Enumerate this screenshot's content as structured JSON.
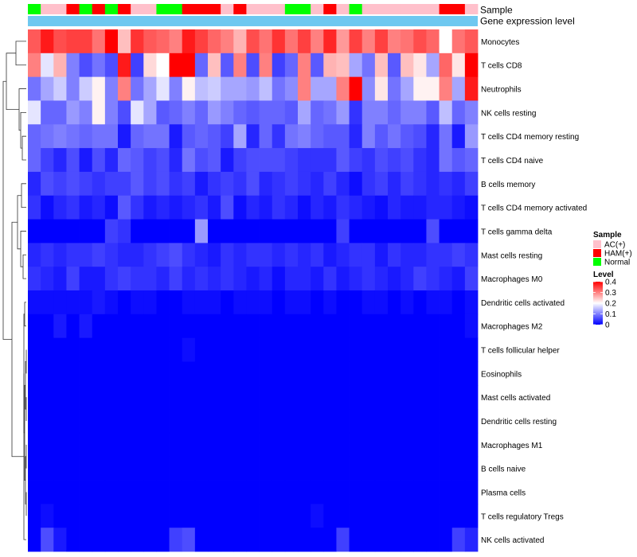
{
  "chart_data": {
    "type": "heatmap",
    "title": "",
    "annotation_labels": [
      "Sample",
      "Gene expression level"
    ],
    "rows": [
      "Monocytes",
      "T cells CD8",
      "Neutrophils",
      "NK cells resting",
      "T cells CD4 memory resting",
      "T cells CD4 naive",
      "B cells memory",
      "T cells CD4 memory activated",
      "T cells gamma delta",
      "Mast cells resting",
      "Macrophages M0",
      "Dendritic cells activated",
      "Macrophages M2",
      "T cells follicular helper",
      "Eosinophils",
      "Mast cells activated",
      "Dendritic cells resting",
      "Macrophages M1",
      "B cells naive",
      "Plasma cells",
      "T cells regulatory  Tregs",
      "NK cells activated"
    ],
    "sample_groups": [
      "Normal",
      "AC(+)",
      "AC(+)",
      "HAM(+)",
      "Normal",
      "HAM(+)",
      "Normal",
      "HAM(+)",
      "AC(+)",
      "AC(+)",
      "Normal",
      "Normal",
      "HAM(+)",
      "HAM(+)",
      "HAM(+)",
      "AC(+)",
      "HAM(+)",
      "AC(+)",
      "AC(+)",
      "AC(+)",
      "Normal",
      "Normal",
      "AC(+)",
      "HAM(+)",
      "AC(+)",
      "Normal",
      "AC(+)",
      "AC(+)",
      "AC(+)",
      "AC(+)",
      "AC(+)",
      "AC(+)",
      "HAM(+)",
      "HAM(+)",
      "AC(+)"
    ],
    "values": [
      [
        0.33,
        0.38,
        0.34,
        0.35,
        0.35,
        0.31,
        0.4,
        0.25,
        0.36,
        0.33,
        0.32,
        0.3,
        0.38,
        0.35,
        0.32,
        0.3,
        0.26,
        0.34,
        0.31,
        0.36,
        0.31,
        0.35,
        0.3,
        0.37,
        0.28,
        0.35,
        0.3,
        0.35,
        0.3,
        0.31,
        0.34,
        0.32,
        0.2,
        0.31,
        0.33
      ],
      [
        0.3,
        0.18,
        0.26,
        0.1,
        0.06,
        0.09,
        0.06,
        0.38,
        0.05,
        0.23,
        0.2,
        0.42,
        0.42,
        0.08,
        0.25,
        0.07,
        0.3,
        0.06,
        0.3,
        0.05,
        0.08,
        0.3,
        0.07,
        0.26,
        0.25,
        0.13,
        0.09,
        0.25,
        0.07,
        0.25,
        0.22,
        0.13,
        0.32,
        0.22,
        0.42
      ],
      [
        0.09,
        0.13,
        0.16,
        0.1,
        0.16,
        0.21,
        0.1,
        0.3,
        0.09,
        0.13,
        0.18,
        0.1,
        0.21,
        0.15,
        0.16,
        0.13,
        0.13,
        0.12,
        0.15,
        0.09,
        0.11,
        0.3,
        0.13,
        0.13,
        0.3,
        0.42,
        0.11,
        0.22,
        0.09,
        0.13,
        0.21,
        0.21,
        0.3,
        0.13,
        0.38
      ],
      [
        0.18,
        0.08,
        0.08,
        0.12,
        0.1,
        0.21,
        0.1,
        0.06,
        0.18,
        0.13,
        0.07,
        0.08,
        0.1,
        0.08,
        0.12,
        0.1,
        0.08,
        0.07,
        0.08,
        0.08,
        0.07,
        0.13,
        0.08,
        0.09,
        0.12,
        0.04,
        0.1,
        0.1,
        0.08,
        0.1,
        0.1,
        0.07,
        0.15,
        0.08,
        0.1
      ],
      [
        0.08,
        0.09,
        0.1,
        0.09,
        0.08,
        0.09,
        0.09,
        0.02,
        0.08,
        0.09,
        0.09,
        0.02,
        0.07,
        0.08,
        0.07,
        0.05,
        0.13,
        0.03,
        0.08,
        0.04,
        0.09,
        0.1,
        0.08,
        0.07,
        0.07,
        0.03,
        0.1,
        0.07,
        0.09,
        0.07,
        0.06,
        0.03,
        0.09,
        0.02,
        0.12
      ],
      [
        0.08,
        0.05,
        0.03,
        0.06,
        0.02,
        0.06,
        0.03,
        0.08,
        0.07,
        0.05,
        0.06,
        0.03,
        0.09,
        0.06,
        0.07,
        0.02,
        0.05,
        0.06,
        0.06,
        0.06,
        0.05,
        0.04,
        0.04,
        0.04,
        0.07,
        0.05,
        0.04,
        0.06,
        0.05,
        0.06,
        0.04,
        0.03,
        0.09,
        0.07,
        0.08
      ],
      [
        0.03,
        0.06,
        0.05,
        0.06,
        0.05,
        0.04,
        0.05,
        0.05,
        0.07,
        0.05,
        0.06,
        0.04,
        0.05,
        0.02,
        0.04,
        0.05,
        0.04,
        0.06,
        0.03,
        0.04,
        0.05,
        0.04,
        0.03,
        0.05,
        0.03,
        0.01,
        0.04,
        0.05,
        0.03,
        0.05,
        0.04,
        0.03,
        0.04,
        0.03,
        0.05
      ],
      [
        0.04,
        0.01,
        0.03,
        0.04,
        0.02,
        0.03,
        0.01,
        0.07,
        0.04,
        0.02,
        0.03,
        0.02,
        0.03,
        0.04,
        0.02,
        0.06,
        0.01,
        0.03,
        0.02,
        0.04,
        0.03,
        0.01,
        0.03,
        0.02,
        0.04,
        0.03,
        0.02,
        0.01,
        0.03,
        0.02,
        0.02,
        0.03,
        0.03,
        0.02,
        0.01
      ],
      [
        0.0,
        0.0,
        0.0,
        0.0,
        0.0,
        0.0,
        0.05,
        0.04,
        0.0,
        0.0,
        0.0,
        0.0,
        0.0,
        0.12,
        0.0,
        0.0,
        0.0,
        0.0,
        0.0,
        0.0,
        0.0,
        0.0,
        0.0,
        0.0,
        0.05,
        0.0,
        0.0,
        0.0,
        0.0,
        0.0,
        0.0,
        0.06,
        0.0,
        0.0,
        0.0
      ],
      [
        0.03,
        0.04,
        0.03,
        0.04,
        0.04,
        0.05,
        0.04,
        0.03,
        0.03,
        0.04,
        0.05,
        0.06,
        0.04,
        0.03,
        0.02,
        0.04,
        0.03,
        0.04,
        0.04,
        0.03,
        0.04,
        0.03,
        0.04,
        0.02,
        0.03,
        0.04,
        0.04,
        0.02,
        0.04,
        0.03,
        0.03,
        0.04,
        0.04,
        0.05,
        0.04
      ],
      [
        0.04,
        0.03,
        0.02,
        0.05,
        0.02,
        0.02,
        0.04,
        0.05,
        0.04,
        0.04,
        0.03,
        0.05,
        0.03,
        0.04,
        0.03,
        0.04,
        0.03,
        0.02,
        0.03,
        0.01,
        0.03,
        0.03,
        0.02,
        0.04,
        0.02,
        0.03,
        0.04,
        0.03,
        0.02,
        0.03,
        0.05,
        0.04,
        0.03,
        0.02,
        0.05
      ],
      [
        0.01,
        0.01,
        0.01,
        0.01,
        0.01,
        0.02,
        0.01,
        0.0,
        0.01,
        0.01,
        0.0,
        0.0,
        0.01,
        0.01,
        0.01,
        0.0,
        0.01,
        0.01,
        0.01,
        0.0,
        0.01,
        0.01,
        0.0,
        0.01,
        0.0,
        0.0,
        0.01,
        0.01,
        0.0,
        0.01,
        0.0,
        0.01,
        0.01,
        0.0,
        0.01
      ],
      [
        0.0,
        0.0,
        0.02,
        0.0,
        0.02,
        0.0,
        0.0,
        0.0,
        0.0,
        0.0,
        0.0,
        0.0,
        0.0,
        0.0,
        0.0,
        0.0,
        0.0,
        0.0,
        0.0,
        0.0,
        0.0,
        0.0,
        0.0,
        0.0,
        0.0,
        0.0,
        0.0,
        0.0,
        0.0,
        0.0,
        0.0,
        0.0,
        0.0,
        0.0,
        0.01
      ],
      [
        0.0,
        0.0,
        0.0,
        0.0,
        0.0,
        0.0,
        0.0,
        0.0,
        0.0,
        0.0,
        0.0,
        0.0,
        0.01,
        0.0,
        0.0,
        0.0,
        0.0,
        0.0,
        0.0,
        0.0,
        0.0,
        0.0,
        0.0,
        0.0,
        0.0,
        0.0,
        0.0,
        0.0,
        0.0,
        0.0,
        0.0,
        0.0,
        0.0,
        0.0,
        0.0
      ],
      [
        0.0,
        0.0,
        0.0,
        0.0,
        0.0,
        0.0,
        0.0,
        0.0,
        0.0,
        0.0,
        0.0,
        0.0,
        0.0,
        0.0,
        0.0,
        0.0,
        0.0,
        0.0,
        0.0,
        0.0,
        0.0,
        0.0,
        0.0,
        0.0,
        0.0,
        0.0,
        0.0,
        0.0,
        0.0,
        0.0,
        0.0,
        0.0,
        0.0,
        0.0,
        0.0
      ],
      [
        0.0,
        0.0,
        0.0,
        0.0,
        0.0,
        0.0,
        0.0,
        0.0,
        0.0,
        0.0,
        0.0,
        0.0,
        0.0,
        0.0,
        0.0,
        0.0,
        0.0,
        0.0,
        0.0,
        0.0,
        0.0,
        0.0,
        0.0,
        0.0,
        0.0,
        0.0,
        0.0,
        0.0,
        0.0,
        0.0,
        0.0,
        0.0,
        0.0,
        0.0,
        0.0
      ],
      [
        0.0,
        0.0,
        0.0,
        0.0,
        0.0,
        0.0,
        0.0,
        0.0,
        0.0,
        0.0,
        0.0,
        0.0,
        0.0,
        0.0,
        0.0,
        0.0,
        0.0,
        0.0,
        0.0,
        0.0,
        0.0,
        0.0,
        0.0,
        0.0,
        0.0,
        0.0,
        0.0,
        0.0,
        0.0,
        0.0,
        0.0,
        0.0,
        0.0,
        0.0,
        0.0
      ],
      [
        0.0,
        0.0,
        0.0,
        0.0,
        0.0,
        0.0,
        0.0,
        0.0,
        0.0,
        0.0,
        0.0,
        0.0,
        0.0,
        0.0,
        0.0,
        0.0,
        0.0,
        0.0,
        0.0,
        0.0,
        0.0,
        0.0,
        0.0,
        0.0,
        0.0,
        0.0,
        0.0,
        0.0,
        0.0,
        0.0,
        0.0,
        0.0,
        0.0,
        0.0,
        0.0
      ],
      [
        0.0,
        0.0,
        0.0,
        0.0,
        0.0,
        0.0,
        0.0,
        0.0,
        0.0,
        0.0,
        0.0,
        0.0,
        0.0,
        0.0,
        0.0,
        0.0,
        0.0,
        0.0,
        0.0,
        0.0,
        0.0,
        0.0,
        0.0,
        0.0,
        0.0,
        0.0,
        0.0,
        0.0,
        0.0,
        0.0,
        0.0,
        0.0,
        0.0,
        0.0,
        0.0
      ],
      [
        0.0,
        0.0,
        0.0,
        0.0,
        0.0,
        0.0,
        0.0,
        0.0,
        0.0,
        0.0,
        0.0,
        0.0,
        0.0,
        0.0,
        0.0,
        0.0,
        0.0,
        0.0,
        0.0,
        0.0,
        0.0,
        0.0,
        0.0,
        0.0,
        0.0,
        0.0,
        0.0,
        0.0,
        0.0,
        0.0,
        0.0,
        0.0,
        0.0,
        0.0,
        0.0
      ],
      [
        0.0,
        0.01,
        0.0,
        0.0,
        0.0,
        0.0,
        0.0,
        0.0,
        0.0,
        0.0,
        0.0,
        0.0,
        0.0,
        0.0,
        0.0,
        0.0,
        0.0,
        0.0,
        0.0,
        0.0,
        0.0,
        0.0,
        0.01,
        0.0,
        0.0,
        0.0,
        0.0,
        0.0,
        0.0,
        0.0,
        0.0,
        0.0,
        0.0,
        0.0,
        0.0
      ],
      [
        0.0,
        0.06,
        0.02,
        0.0,
        0.0,
        0.0,
        0.0,
        0.0,
        0.0,
        0.0,
        0.0,
        0.05,
        0.06,
        0.0,
        0.0,
        0.0,
        0.0,
        0.0,
        0.0,
        0.0,
        0.0,
        0.0,
        0.0,
        0.0,
        0.05,
        0.0,
        0.0,
        0.0,
        0.0,
        0.0,
        0.0,
        0.0,
        0.0,
        0.05,
        0.03
      ]
    ],
    "legend": {
      "sample_title": "Sample",
      "groups": [
        {
          "name": "AC(+)",
          "color": "#ffc0cb"
        },
        {
          "name": "HAM(+)",
          "color": "#ff0000"
        },
        {
          "name": "Normal",
          "color": "#00ff00"
        }
      ],
      "level_title": "Level",
      "level_ticks": [
        0,
        0.1,
        0.2,
        0.3,
        0.4
      ],
      "level_range": [
        0,
        0.4
      ]
    },
    "colors": {
      "low": "#0000ff",
      "mid": "#ffffff",
      "high": "#ff0000",
      "expression_bar": "#6ec8f0"
    }
  }
}
